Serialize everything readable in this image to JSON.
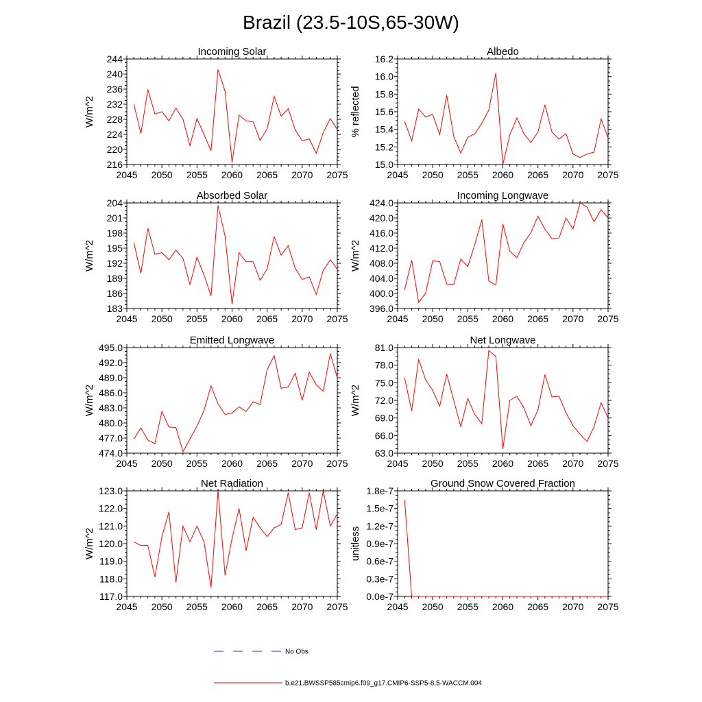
{
  "figure": {
    "title": "Brazil (23.5-10S,65-30W)"
  },
  "legend": {
    "obs_label": "No Obs",
    "obs_color": "#2b2bd6",
    "model_label": "b.e21.BWSSP585cmip6.f09_g17.CMIP6-SSP5-8.5-WACCM.004",
    "model_color": "#ff0000"
  },
  "chart_data": [
    {
      "type": "line",
      "title": "Incoming Solar",
      "xlabel": "",
      "ylabel": "W/m^2",
      "xlim": [
        2045,
        2075
      ],
      "ylim": [
        216,
        244
      ],
      "xticks": [
        2045,
        2050,
        2055,
        2060,
        2065,
        2070,
        2075
      ],
      "xtick_labels": [
        "2045",
        "2050",
        "2055",
        "2060",
        "2065",
        "2070",
        "2075"
      ],
      "yticks": [
        216,
        220,
        224,
        228,
        232,
        236,
        240,
        244
      ],
      "ytick_labels": [
        "216",
        "220",
        "224",
        "228",
        "232",
        "236",
        "240",
        "244"
      ],
      "x": [
        2046,
        2047,
        2048,
        2049,
        2050,
        2051,
        2052,
        2053,
        2054,
        2055,
        2056,
        2057,
        2058,
        2059,
        2060,
        2061,
        2062,
        2063,
        2064,
        2065,
        2066,
        2067,
        2068,
        2069,
        2070,
        2071,
        2072,
        2073,
        2074,
        2075
      ],
      "series": [
        {
          "name": "b.e21.BWSSP585cmip6.f09_g17.CMIP6-SSP5-8.5-WACCM.004",
          "values": [
            232.1,
            224.2,
            235.9,
            229.4,
            230.0,
            227.6,
            231.0,
            228.0,
            221.0,
            228.2,
            224.0,
            219.6,
            241.2,
            235.4,
            216.6,
            229.1,
            227.6,
            227.3,
            222.4,
            225.5,
            234.1,
            228.8,
            230.8,
            225.2,
            222.3,
            222.8,
            219.0,
            224.5,
            228.2,
            225.3
          ]
        }
      ]
    },
    {
      "type": "line",
      "title": "Albedo",
      "xlabel": "",
      "ylabel": "% reflected",
      "xlim": [
        2045,
        2075
      ],
      "ylim": [
        15.0,
        16.2
      ],
      "xticks": [
        2045,
        2050,
        2055,
        2060,
        2065,
        2070,
        2075
      ],
      "xtick_labels": [
        "2045",
        "2050",
        "2055",
        "2060",
        "2065",
        "2070",
        "2075"
      ],
      "yticks": [
        15.0,
        15.2,
        15.4,
        15.6,
        15.8,
        16.0,
        16.2
      ],
      "ytick_labels": [
        "15.0",
        "15.2",
        "15.4",
        "15.6",
        "15.8",
        "16.0",
        "16.2"
      ],
      "x": [
        2046,
        2047,
        2048,
        2049,
        2050,
        2051,
        2052,
        2053,
        2054,
        2055,
        2056,
        2057,
        2058,
        2059,
        2060,
        2061,
        2062,
        2063,
        2064,
        2065,
        2066,
        2067,
        2068,
        2069,
        2070,
        2071,
        2072,
        2073,
        2074,
        2075
      ],
      "series": [
        {
          "name": "b.e21.BWSSP585cmip6.f09_g17.CMIP6-SSP5-8.5-WACCM.004",
          "values": [
            15.49,
            15.27,
            15.63,
            15.54,
            15.57,
            15.34,
            15.79,
            15.32,
            15.13,
            15.31,
            15.35,
            15.47,
            15.62,
            16.04,
            15.0,
            15.34,
            15.53,
            15.35,
            15.25,
            15.37,
            15.68,
            15.37,
            15.29,
            15.35,
            15.12,
            15.08,
            15.12,
            15.14,
            15.52,
            15.3
          ]
        }
      ]
    },
    {
      "type": "line",
      "title": "Absorbed Solar",
      "xlabel": "",
      "ylabel": "W/m^2",
      "xlim": [
        2045,
        2075
      ],
      "ylim": [
        183,
        204
      ],
      "xticks": [
        2045,
        2050,
        2055,
        2060,
        2065,
        2070,
        2075
      ],
      "xtick_labels": [
        "2045",
        "2050",
        "2055",
        "2060",
        "2065",
        "2070",
        "2075"
      ],
      "yticks": [
        183,
        186,
        189,
        192,
        195,
        198,
        201,
        204
      ],
      "ytick_labels": [
        "183",
        "186",
        "189",
        "192",
        "195",
        "198",
        "201",
        "204"
      ],
      "x": [
        2046,
        2047,
        2048,
        2049,
        2050,
        2051,
        2052,
        2053,
        2054,
        2055,
        2056,
        2057,
        2058,
        2059,
        2060,
        2061,
        2062,
        2063,
        2064,
        2065,
        2066,
        2067,
        2068,
        2069,
        2070,
        2071,
        2072,
        2073,
        2074,
        2075
      ],
      "series": [
        {
          "name": "b.e21.BWSSP585cmip6.f09_g17.CMIP6-SSP5-8.5-WACCM.004",
          "values": [
            196.1,
            190.0,
            199.0,
            193.8,
            194.1,
            192.7,
            194.6,
            193.0,
            187.7,
            193.2,
            189.7,
            185.5,
            203.5,
            197.4,
            183.9,
            194.1,
            192.3,
            192.3,
            188.6,
            190.9,
            197.3,
            193.6,
            195.5,
            191.0,
            188.8,
            189.3,
            185.8,
            190.6,
            192.7,
            190.8
          ]
        }
      ]
    },
    {
      "type": "line",
      "title": "Incoming Longwave",
      "xlabel": "",
      "ylabel": "W/m^2",
      "xlim": [
        2045,
        2075
      ],
      "ylim": [
        396.0,
        424.0
      ],
      "xticks": [
        2045,
        2050,
        2055,
        2060,
        2065,
        2070,
        2075
      ],
      "xtick_labels": [
        "2045",
        "2050",
        "2055",
        "2060",
        "2065",
        "2070",
        "2075"
      ],
      "yticks": [
        396,
        400,
        404,
        408,
        412,
        416,
        420,
        424
      ],
      "ytick_labels": [
        "396.0",
        "400.0",
        "404.0",
        "408.0",
        "412.0",
        "416.0",
        "420.0",
        "424.0"
      ],
      "x": [
        2046,
        2047,
        2048,
        2049,
        2050,
        2051,
        2052,
        2053,
        2054,
        2055,
        2056,
        2057,
        2058,
        2059,
        2060,
        2061,
        2062,
        2063,
        2064,
        2065,
        2066,
        2067,
        2068,
        2069,
        2070,
        2071,
        2072,
        2073,
        2074,
        2075
      ],
      "series": [
        {
          "name": "b.e21.BWSSP585cmip6.f09_g17.CMIP6-SSP5-8.5-WACCM.004",
          "values": [
            400.9,
            408.8,
            397.6,
            400.1,
            408.7,
            408.4,
            402.5,
            402.4,
            409.1,
            407.1,
            413.0,
            419.6,
            403.3,
            402.2,
            418.4,
            411.2,
            409.5,
            413.5,
            416.1,
            420.5,
            417.0,
            414.5,
            414.7,
            420.0,
            417.1,
            424.0,
            422.9,
            419.0,
            422.2,
            420.0
          ]
        }
      ]
    },
    {
      "type": "line",
      "title": "Emitted Longwave",
      "xlabel": "",
      "ylabel": "W/m^2",
      "xlim": [
        2045,
        2075
      ],
      "ylim": [
        474.0,
        495.0
      ],
      "xticks": [
        2045,
        2050,
        2055,
        2060,
        2065,
        2070,
        2075
      ],
      "xtick_labels": [
        "2045",
        "2050",
        "2055",
        "2060",
        "2065",
        "2070",
        "2075"
      ],
      "yticks": [
        474,
        477,
        480,
        483,
        486,
        489,
        492,
        495
      ],
      "ytick_labels": [
        "474.0",
        "477.0",
        "480.0",
        "483.0",
        "486.0",
        "489.0",
        "492.0",
        "495.0"
      ],
      "x": [
        2046,
        2047,
        2048,
        2049,
        2050,
        2051,
        2052,
        2053,
        2054,
        2055,
        2056,
        2057,
        2058,
        2059,
        2060,
        2061,
        2062,
        2063,
        2064,
        2065,
        2066,
        2067,
        2068,
        2069,
        2070,
        2071,
        2072,
        2073,
        2074,
        2075
      ],
      "series": [
        {
          "name": "b.e21.BWSSP585cmip6.f09_g17.CMIP6-SSP5-8.5-WACCM.004",
          "values": [
            476.8,
            479.0,
            476.6,
            475.9,
            482.3,
            479.2,
            479.1,
            474.3,
            476.8,
            479.4,
            482.5,
            487.4,
            483.8,
            481.7,
            482.0,
            483.2,
            482.3,
            484.2,
            483.7,
            490.6,
            493.4,
            486.9,
            487.2,
            489.9,
            484.5,
            490.1,
            487.6,
            486.3,
            493.8,
            489.0
          ]
        }
      ]
    },
    {
      "type": "line",
      "title": "Net Longwave",
      "xlabel": "",
      "ylabel": "W/m^2",
      "xlim": [
        2045,
        2075
      ],
      "ylim": [
        63.0,
        81.0
      ],
      "xticks": [
        2045,
        2050,
        2055,
        2060,
        2065,
        2070,
        2075
      ],
      "xtick_labels": [
        "2045",
        "2050",
        "2055",
        "2060",
        "2065",
        "2070",
        "2075"
      ],
      "yticks": [
        63,
        66,
        69,
        72,
        75,
        78,
        81
      ],
      "ytick_labels": [
        "63.0",
        "66.0",
        "69.0",
        "72.0",
        "75.0",
        "78.0",
        "81.0"
      ],
      "x": [
        2046,
        2047,
        2048,
        2049,
        2050,
        2051,
        2052,
        2053,
        2054,
        2055,
        2056,
        2057,
        2058,
        2059,
        2060,
        2061,
        2062,
        2063,
        2064,
        2065,
        2066,
        2067,
        2068,
        2069,
        2070,
        2071,
        2072,
        2073,
        2074,
        2075
      ],
      "series": [
        {
          "name": "b.e21.BWSSP585cmip6.f09_g17.CMIP6-SSP5-8.5-WACCM.004",
          "values": [
            75.8,
            70.2,
            79.0,
            75.5,
            73.7,
            71.0,
            76.5,
            72.0,
            67.5,
            72.3,
            69.6,
            68.0,
            80.5,
            79.5,
            63.7,
            72.0,
            72.7,
            70.7,
            67.7,
            70.4,
            76.4,
            72.6,
            72.7,
            69.9,
            67.7,
            66.2,
            65.0,
            67.5,
            71.6,
            69.0
          ]
        }
      ]
    },
    {
      "type": "line",
      "title": "Net Radiation",
      "xlabel": "",
      "ylabel": "W/m^2",
      "xlim": [
        2045,
        2075
      ],
      "ylim": [
        117.0,
        123.0
      ],
      "xticks": [
        2045,
        2050,
        2055,
        2060,
        2065,
        2070,
        2075
      ],
      "xtick_labels": [
        "2045",
        "2050",
        "2055",
        "2060",
        "2065",
        "2070",
        "2075"
      ],
      "yticks": [
        117,
        118,
        119,
        120,
        121,
        122,
        123
      ],
      "ytick_labels": [
        "117.0",
        "118.0",
        "119.0",
        "120.0",
        "121.0",
        "122.0",
        "123.0"
      ],
      "x": [
        2046,
        2047,
        2048,
        2049,
        2050,
        2051,
        2052,
        2053,
        2054,
        2055,
        2056,
        2057,
        2058,
        2059,
        2060,
        2061,
        2062,
        2063,
        2064,
        2065,
        2066,
        2067,
        2068,
        2069,
        2070,
        2071,
        2072,
        2073,
        2074,
        2075
      ],
      "series": [
        {
          "name": "b.e21.BWSSP585cmip6.f09_g17.CMIP6-SSP5-8.5-WACCM.004",
          "values": [
            120.1,
            119.9,
            119.9,
            118.1,
            120.4,
            121.8,
            117.8,
            121.0,
            120.1,
            121.0,
            120.1,
            117.5,
            123.0,
            118.2,
            120.3,
            122.0,
            119.6,
            121.5,
            120.9,
            120.4,
            120.9,
            121.1,
            122.9,
            120.8,
            120.9,
            122.9,
            120.8,
            123.0,
            121.0,
            121.7
          ]
        }
      ]
    },
    {
      "type": "line",
      "title": "Ground Snow Covered Fraction",
      "xlabel": "",
      "ylabel": "unitless",
      "xlim": [
        2045,
        2075
      ],
      "ylim": [
        0.0,
        1.8e-07
      ],
      "xticks": [
        2045,
        2050,
        2055,
        2060,
        2065,
        2070,
        2075
      ],
      "xtick_labels": [
        "2045",
        "2050",
        "2055",
        "2060",
        "2065",
        "2070",
        "2075"
      ],
      "yticks": [
        0.0,
        3e-08,
        6e-08,
        9e-08,
        1.2e-07,
        1.5e-07,
        1.8e-07
      ],
      "ytick_labels": [
        "0.0e-7",
        "0.3e-7",
        "0.6e-7",
        "0.9e-7",
        "1.2e-7",
        "1.5e-7",
        "1.8e-7"
      ],
      "x": [
        2046,
        2047,
        2048,
        2049,
        2050,
        2051,
        2052,
        2053,
        2054,
        2055,
        2056,
        2057,
        2058,
        2059,
        2060,
        2061,
        2062,
        2063,
        2064,
        2065,
        2066,
        2067,
        2068,
        2069,
        2070,
        2071,
        2072,
        2073,
        2074,
        2075
      ],
      "series": [
        {
          "name": "b.e21.BWSSP585cmip6.f09_g17.CMIP6-SSP5-8.5-WACCM.004",
          "values": [
            1.65e-07,
            0,
            0,
            0,
            0,
            0,
            0,
            0,
            0,
            0,
            0,
            0,
            0,
            0,
            0,
            0,
            0,
            0,
            0,
            0,
            0,
            0,
            0,
            0,
            0,
            0,
            0,
            0,
            0,
            0
          ]
        }
      ]
    }
  ]
}
